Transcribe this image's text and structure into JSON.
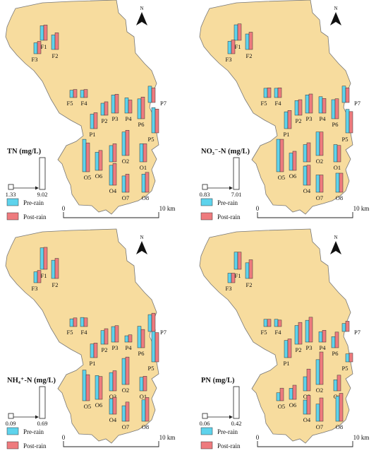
{
  "legend": {
    "pre_label": "Pre-rain",
    "post_label": "Post-rain",
    "pre_color": "#5ed3ec",
    "post_color": "#ee7b7e"
  },
  "north_label": "N",
  "scale": {
    "start": "0",
    "end": "10 km"
  },
  "region_fill": "#f7dc9e",
  "region_stroke": "#777777",
  "panels": [
    {
      "title": "TN (mg/L)",
      "min": 1.33,
      "max": 9.02,
      "min_label": "1.33",
      "max_label": "9.02",
      "sites": [
        {
          "id": "F1",
          "pre": 4.0,
          "post": 4.2
        },
        {
          "id": "F2",
          "pre": 4.0,
          "post": 4.6
        },
        {
          "id": "F3",
          "pre": 3.0,
          "post": 3.4
        },
        {
          "id": "F5",
          "pre": 2.0,
          "post": 2.2
        },
        {
          "id": "F4",
          "pre": 2.0,
          "post": 2.2
        },
        {
          "id": "P1",
          "pre": 4.0,
          "post": 4.4
        },
        {
          "id": "P2",
          "pre": 3.3,
          "post": 3.7
        },
        {
          "id": "P3",
          "pre": 5.0,
          "post": 5.2
        },
        {
          "id": "P4",
          "pre": 4.2,
          "post": 3.6
        },
        {
          "id": "P6",
          "pre": 5.5,
          "post": 6.0
        },
        {
          "id": "P5",
          "pre": 7.0,
          "post": 6.6
        },
        {
          "id": "P7",
          "pre": 4.5,
          "post": 4.0
        },
        {
          "id": "O5",
          "pre": 9.0,
          "post": 8.0
        },
        {
          "id": "O6",
          "pre": 5.0,
          "post": 5.5
        },
        {
          "id": "O3",
          "pre": 4.5,
          "post": 5.0
        },
        {
          "id": "O2",
          "pre": 6.5,
          "post": 7.0
        },
        {
          "id": "O1",
          "pre": 5.0,
          "post": 5.0
        },
        {
          "id": "O4",
          "pre": 5.5,
          "post": 6.0
        },
        {
          "id": "O7",
          "pre": 4.5,
          "post": 5.0
        },
        {
          "id": "O8",
          "pre": 5.0,
          "post": 5.5
        }
      ]
    },
    {
      "title": "NO₃⁻-N (mg/L)",
      "min": 0.83,
      "max": 7.01,
      "min_label": "0.83",
      "max_label": "7.01",
      "sites": [
        {
          "id": "F1",
          "pre": 3.2,
          "post": 3.4
        },
        {
          "id": "F2",
          "pre": 3.2,
          "post": 3.6
        },
        {
          "id": "F3",
          "pre": 2.5,
          "post": 2.8
        },
        {
          "id": "F5",
          "pre": 1.8,
          "post": 1.9
        },
        {
          "id": "F4",
          "pre": 1.8,
          "post": 1.9
        },
        {
          "id": "P1",
          "pre": 3.5,
          "post": 3.8
        },
        {
          "id": "P2",
          "pre": 3.0,
          "post": 3.2
        },
        {
          "id": "P3",
          "pre": 3.8,
          "post": 4.0
        },
        {
          "id": "P4",
          "pre": 3.4,
          "post": 3.0
        },
        {
          "id": "P6",
          "pre": 4.0,
          "post": 4.2
        },
        {
          "id": "P5",
          "pre": 5.0,
          "post": 4.5
        },
        {
          "id": "P7",
          "pre": 3.4,
          "post": 3.0
        },
        {
          "id": "O5",
          "pre": 7.0,
          "post": 7.0
        },
        {
          "id": "O6",
          "pre": 3.6,
          "post": 4.0
        },
        {
          "id": "O3",
          "pre": 3.6,
          "post": 4.0
        },
        {
          "id": "O2",
          "pre": 5.0,
          "post": 5.0
        },
        {
          "id": "O1",
          "pre": 3.6,
          "post": 3.4
        },
        {
          "id": "O4",
          "pre": 4.0,
          "post": 4.2
        },
        {
          "id": "O7",
          "pre": 3.6,
          "post": 3.6
        },
        {
          "id": "O8",
          "pre": 4.0,
          "post": 4.0
        }
      ]
    },
    {
      "title": "NH₄⁺-N (mg/L)",
      "min": 0.09,
      "max": 0.69,
      "min_label": "0.09",
      "max_label": "0.69",
      "sites": [
        {
          "id": "F1",
          "pre": 0.45,
          "post": 0.46
        },
        {
          "id": "F2",
          "pre": 0.38,
          "post": 0.42
        },
        {
          "id": "F3",
          "pre": 0.22,
          "post": 0.25
        },
        {
          "id": "F5",
          "pre": 0.15,
          "post": 0.17
        },
        {
          "id": "F4",
          "pre": 0.18,
          "post": 0.17
        },
        {
          "id": "P1",
          "pre": 0.28,
          "post": 0.3
        },
        {
          "id": "P2",
          "pre": 0.28,
          "post": 0.32
        },
        {
          "id": "P3",
          "pre": 0.32,
          "post": 0.34
        },
        {
          "id": "P4",
          "pre": 0.12,
          "post": 0.14
        },
        {
          "id": "P6",
          "pre": 0.45,
          "post": 0.38
        },
        {
          "id": "P5",
          "pre": 0.69,
          "post": 0.62
        },
        {
          "id": "P7",
          "pre": 0.35,
          "post": 0.38
        },
        {
          "id": "O5",
          "pre": 0.65,
          "post": 0.55
        },
        {
          "id": "O6",
          "pre": 0.5,
          "post": 0.48
        },
        {
          "id": "O3",
          "pre": 0.38,
          "post": 0.42
        },
        {
          "id": "O2",
          "pre": 0.55,
          "post": 0.58
        },
        {
          "id": "O1",
          "pre": 0.28,
          "post": 0.3
        },
        {
          "id": "O4",
          "pre": 0.32,
          "post": 0.35
        },
        {
          "id": "O7",
          "pre": 0.32,
          "post": 0.4
        },
        {
          "id": "O8",
          "pre": 0.45,
          "post": 0.5
        }
      ]
    },
    {
      "title": "PN (mg/L)",
      "min": 0.06,
      "max": 0.42,
      "min_label": "0.06",
      "max_label": "0.42",
      "sites": [
        {
          "id": "F1",
          "pre": 0.22,
          "post": 0.22
        },
        {
          "id": "F2",
          "pre": 0.2,
          "post": 0.24
        },
        {
          "id": "F3",
          "pre": 0.12,
          "post": 0.12
        },
        {
          "id": "F5",
          "pre": 0.09,
          "post": 0.09
        },
        {
          "id": "F4",
          "pre": 0.09,
          "post": 0.08
        },
        {
          "id": "P1",
          "pre": 0.22,
          "post": 0.24
        },
        {
          "id": "P2",
          "pre": 0.24,
          "post": 0.28
        },
        {
          "id": "P3",
          "pre": 0.28,
          "post": 0.32
        },
        {
          "id": "P4",
          "pre": 0.13,
          "post": 0.15
        },
        {
          "id": "P6",
          "pre": 0.14,
          "post": 0.2
        },
        {
          "id": "P5",
          "pre": 0.1,
          "post": 0.11
        },
        {
          "id": "P7",
          "pre": 0.1,
          "post": 0.13
        },
        {
          "id": "O5",
          "pre": 0.1,
          "post": 0.16
        },
        {
          "id": "O6",
          "pre": 0.14,
          "post": 0.18
        },
        {
          "id": "O3",
          "pre": 0.18,
          "post": 0.28
        },
        {
          "id": "O2",
          "pre": 0.32,
          "post": 0.42
        },
        {
          "id": "O1",
          "pre": 0.14,
          "post": 0.2
        },
        {
          "id": "O4",
          "pre": 0.18,
          "post": 0.24
        },
        {
          "id": "O7",
          "pre": 0.22,
          "post": 0.3
        },
        {
          "id": "O8",
          "pre": 0.32,
          "post": 0.36
        }
      ]
    }
  ]
}
